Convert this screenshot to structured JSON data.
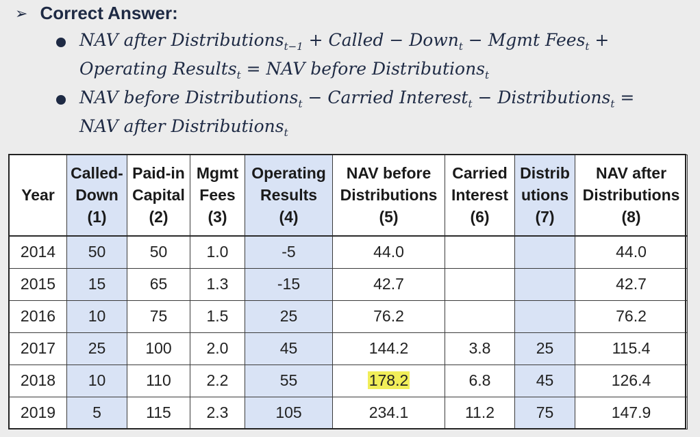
{
  "heading": {
    "arrow": "➢",
    "title": "Correct Answer:"
  },
  "bullets": [
    {
      "line1": [
        {
          "t": "NAV after Distributions"
        },
        {
          "s": "t−1"
        },
        {
          "t": " + Called − Down"
        },
        {
          "s": "t"
        },
        {
          "t": " − Mgmt Fees"
        },
        {
          "s": "t"
        },
        {
          "t": " +"
        }
      ],
      "line2": [
        {
          "t": "Operating Results"
        },
        {
          "s": "t"
        },
        {
          "t": " = NAV before Distributions"
        },
        {
          "s": "t"
        }
      ]
    },
    {
      "line1": [
        {
          "t": "NAV before Distributions"
        },
        {
          "s": "t"
        },
        {
          "t": " − Carried Interest"
        },
        {
          "s": "t"
        },
        {
          "t": " − Distributions"
        },
        {
          "s": "t"
        },
        {
          "t": " ="
        }
      ],
      "line2": [
        {
          "t": "NAV after Distributions"
        },
        {
          "s": "t"
        }
      ]
    }
  ],
  "table": {
    "headers": [
      [
        "Year"
      ],
      [
        "Called-",
        "Down",
        "(1)"
      ],
      [
        "Paid-in",
        "Capital",
        "(2)"
      ],
      [
        "Mgmt",
        "Fees",
        "(3)"
      ],
      [
        "Operating",
        "Results",
        "(4)"
      ],
      [
        "NAV before",
        "Distributions",
        "(5)"
      ],
      [
        "Carried",
        "Interest",
        "(6)"
      ],
      [
        "Distrib",
        "utions",
        "(7)"
      ],
      [
        "NAV after",
        "Distributions",
        "(8)"
      ]
    ],
    "highlight_columns": [
      1,
      4,
      7
    ],
    "rows": [
      [
        "2014",
        "50",
        "50",
        "1.0",
        "-5",
        "44.0",
        "",
        "",
        "44.0"
      ],
      [
        "2015",
        "15",
        "65",
        "1.3",
        "-15",
        "42.7",
        "",
        "",
        "42.7"
      ],
      [
        "2016",
        "10",
        "75",
        "1.5",
        "25",
        "76.2",
        "",
        "",
        "76.2"
      ],
      [
        "2017",
        "25",
        "100",
        "2.0",
        "45",
        "144.2",
        "3.8",
        "25",
        "115.4"
      ],
      [
        "2018",
        "10",
        "110",
        "2.2",
        "55",
        "178.2",
        "6.8",
        "45",
        "126.4"
      ],
      [
        "2019",
        "5",
        "115",
        "2.3",
        "105",
        "234.1",
        "11.2",
        "75",
        "147.9"
      ]
    ],
    "yellow_cell": {
      "row": 4,
      "col": 5
    }
  },
  "colors": {
    "highlight": "#d9e3f5",
    "yellow": "#f1ee5a",
    "text": "#1e2a44"
  }
}
